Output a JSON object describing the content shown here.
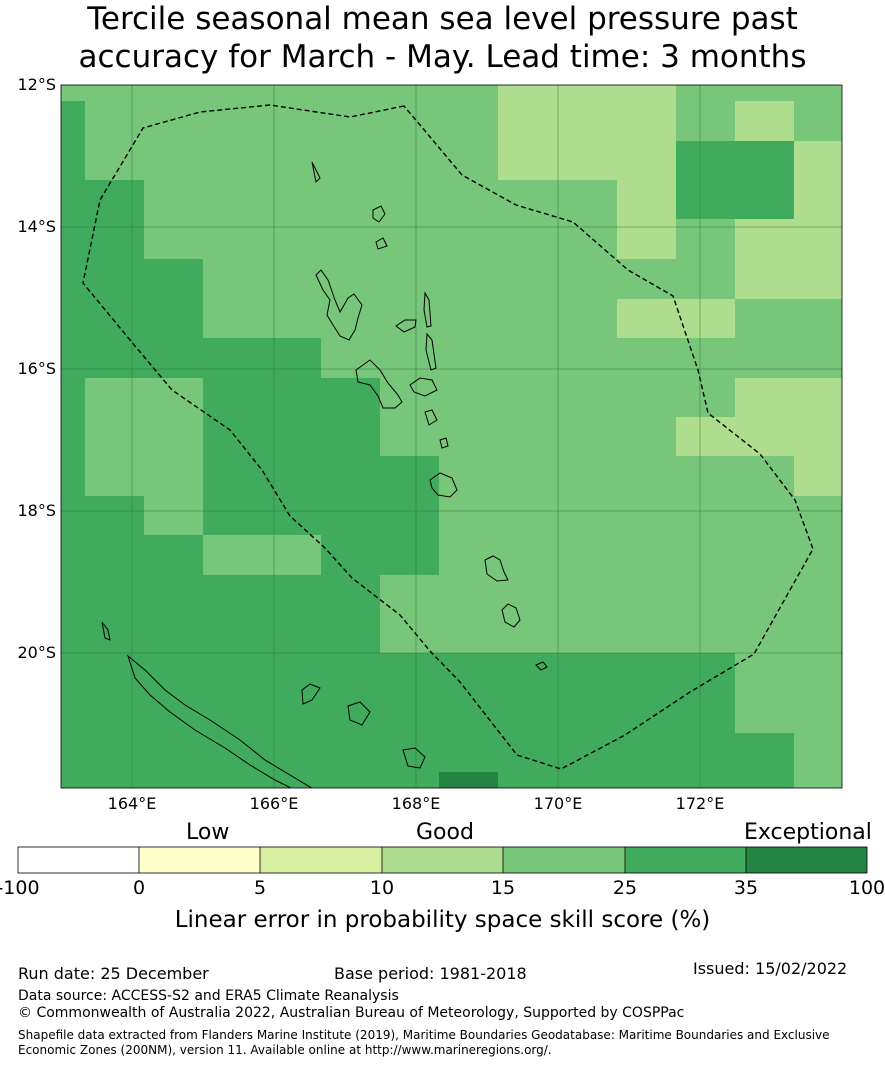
{
  "title_line1": "Tercile seasonal mean sea level pressure past",
  "title_line2": "accuracy for March - May. Lead time: 3 months",
  "map": {
    "lon_range": [
      163.0,
      174.0
    ],
    "lat_range": [
      -12.0,
      -21.9
    ],
    "lat_labels": [
      "12°S",
      "14°S",
      "16°S",
      "18°S",
      "20°S"
    ],
    "lon_labels": [
      "164°E",
      "166°E",
      "168°E",
      "170°E",
      "172°E"
    ],
    "colors": {
      "c1": "#aedd8e",
      "c2": "#78c679",
      "c3": "#41ab5d",
      "c4": "#238443",
      "boundary": "#000000"
    }
  },
  "colorbar": {
    "category_labels": {
      "low": "Low",
      "good": "Good",
      "exceptional": "Exceptional"
    },
    "ticks": [
      "-100",
      "0",
      "5",
      "10",
      "15",
      "25",
      "35",
      "100"
    ],
    "bin_colors": [
      "#ffffff",
      "#ffffcc",
      "#d9f0a3",
      "#addd8e",
      "#78c679",
      "#41ab5d",
      "#238443"
    ],
    "label": "Linear error in probability space skill score (%)"
  },
  "footer": {
    "run_date": "Run date: 25 December",
    "base_period": "Base period: 1981-2018",
    "issued": "Issued: 15/02/2022",
    "data_source": "Data source: ACCESS-S2 and ERA5 Climate Reanalysis",
    "copyright": "© Commonwealth of Australia 2022, Australian Bureau of Meteorology, Supported by COSPPac",
    "shapefile_line1": "Shapefile data extracted from Flanders Marine Institute (2019), Maritime Boundaries Geodatabase: Maritime Boundaries and Exclusive",
    "shapefile_line2": "Economic Zones (200NM), version 11. Available online at http://www.marineregions.org/."
  }
}
